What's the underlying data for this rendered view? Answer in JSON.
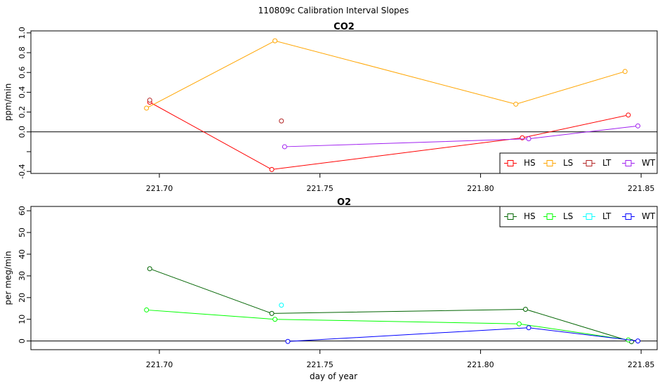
{
  "title": "110809c   Calibration Interval Slopes",
  "xlabel": "day of year",
  "colors": {
    "HS_co2": "#ff0000",
    "LS_co2": "#ffa500",
    "LT_co2": "#b22222",
    "WT_co2": "#a020f0",
    "HS_o2": "#006400",
    "LS_o2": "#00ff00",
    "LT_o2": "#00ffff",
    "WT_o2": "#0000ff"
  },
  "chart_data": [
    {
      "type": "line",
      "title": "CO2",
      "xlabel": "",
      "ylabel": "ppm/min",
      "xlim": [
        221.66,
        221.855
      ],
      "ylim": [
        -0.42,
        1.02
      ],
      "xticks": [
        221.7,
        221.75,
        221.8,
        221.85
      ],
      "xtick_labels": [
        "221.70",
        "221.75",
        "221.80",
        "221.85"
      ],
      "yticks": [
        -0.4,
        -0.2,
        0.0,
        0.2,
        0.4,
        0.6,
        0.8,
        1.0
      ],
      "ytick_labels": [
        "-0.4",
        "",
        "0.0",
        "0.2",
        "0.4",
        "0.6",
        "0.8",
        "1.0"
      ],
      "hline": 0,
      "legend": "bottom-right",
      "series": [
        {
          "name": "HS",
          "color": "#ff0000",
          "x": [
            221.697,
            221.735,
            221.813,
            221.846
          ],
          "y": [
            0.3,
            -0.38,
            -0.06,
            0.17
          ]
        },
        {
          "name": "LS",
          "color": "#ffa500",
          "x": [
            221.696,
            221.736,
            221.811,
            221.845
          ],
          "y": [
            0.24,
            0.92,
            0.28,
            0.61
          ]
        },
        {
          "name": "LT",
          "color": "#b22222",
          "x": [
            221.697,
            221.738
          ],
          "y": [
            0.32,
            0.11
          ],
          "points_only": true
        },
        {
          "name": "WT",
          "color": "#a020f0",
          "x": [
            221.739,
            221.815,
            221.849
          ],
          "y": [
            -0.15,
            -0.07,
            0.06
          ]
        }
      ]
    },
    {
      "type": "line",
      "title": "O2",
      "xlabel": "day of year",
      "ylabel": "per meg/min",
      "xlim": [
        221.66,
        221.855
      ],
      "ylim": [
        -4,
        62
      ],
      "xticks": [
        221.7,
        221.75,
        221.8,
        221.85
      ],
      "xtick_labels": [
        "221.70",
        "221.75",
        "221.80",
        "221.85"
      ],
      "yticks": [
        0,
        10,
        20,
        30,
        40,
        50,
        60
      ],
      "ytick_labels": [
        "0",
        "10",
        "20",
        "30",
        "40",
        "50",
        "60"
      ],
      "hline": 0,
      "legend": "top-right",
      "series": [
        {
          "name": "HS",
          "color": "#006400",
          "x": [
            221.697,
            221.735,
            221.814,
            221.847
          ],
          "y": [
            33.3,
            12.7,
            14.6,
            -0.3
          ]
        },
        {
          "name": "LS",
          "color": "#00ff00",
          "x": [
            221.696,
            221.736,
            221.812,
            221.846
          ],
          "y": [
            14.3,
            10.0,
            7.9,
            0.5
          ]
        },
        {
          "name": "LT",
          "color": "#00ffff",
          "x": [
            221.738
          ],
          "y": [
            16.5
          ],
          "points_only": true
        },
        {
          "name": "WT",
          "color": "#0000ff",
          "x": [
            221.74,
            221.815,
            221.849
          ],
          "y": [
            -0.2,
            6.1,
            0.0
          ]
        }
      ]
    }
  ]
}
